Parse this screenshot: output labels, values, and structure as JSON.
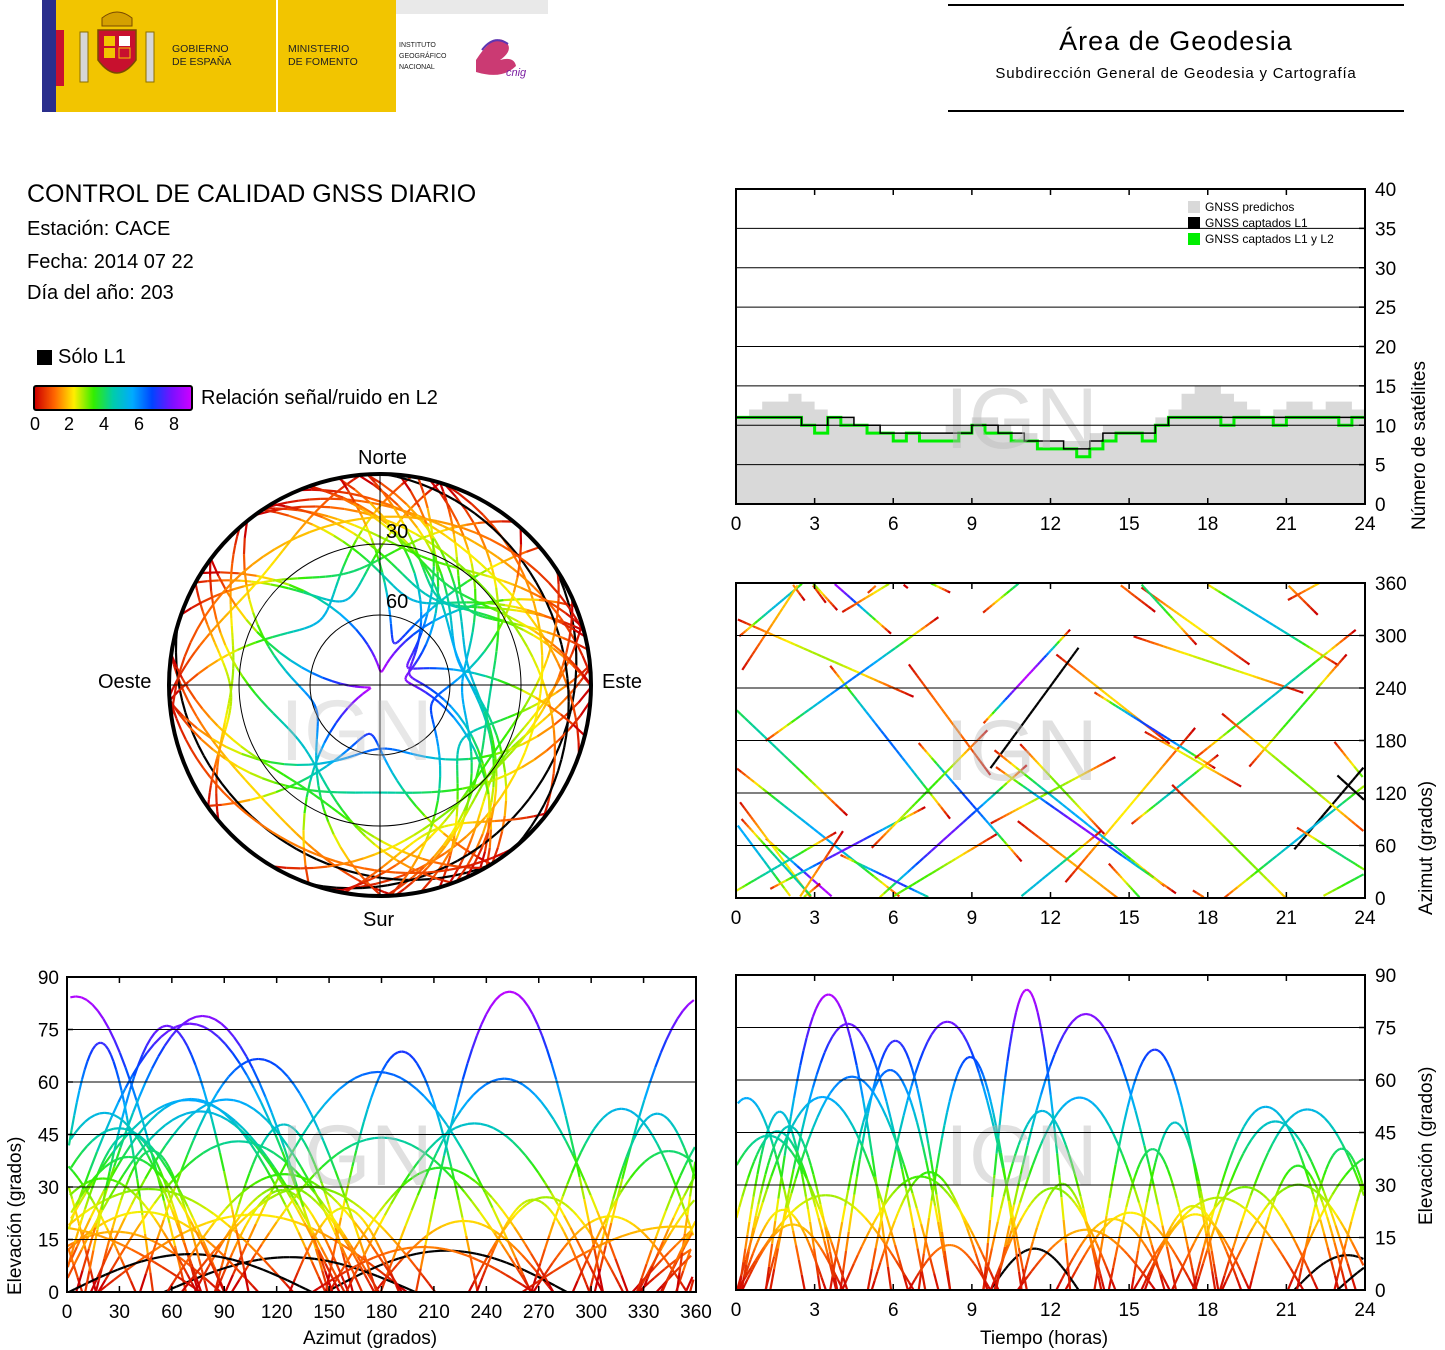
{
  "header": {
    "logo": {
      "gov_line1": "GOBIERNO",
      "gov_line2": "DE ESPAÑA",
      "min_line1": "MINISTERIO",
      "min_line2": "DE FOMENTO",
      "ign_line1": "INSTITUTO",
      "ign_line2": "GEOGRÁFICO",
      "ign_line3": "NACIONAL",
      "cnig_mark": "cnig"
    },
    "area_title": "Área de Geodesia",
    "area_subtitle": "Subdirección General de Geodesia y Cartografía"
  },
  "info": {
    "title": "CONTROL DE CALIDAD GNSS DIARIO",
    "station": "Estación: CACE",
    "date": "Fecha: 2014 07 22",
    "doy": "Día del año: 203"
  },
  "legend": {
    "l1_only": "Sólo L1",
    "snr_label": "Relación señal/ruido en L2",
    "snr_ticks": [
      "0",
      "2",
      "4",
      "6",
      "8"
    ],
    "l1_color": "#000000"
  },
  "watermark": "IGN",
  "colors": {
    "predicted": "#d9d9d9",
    "l1": "#000000",
    "l1l2": "#00ee00",
    "snr_scale": [
      "#cc0000",
      "#ff6600",
      "#ffee00",
      "#33ee00",
      "#00ccaa",
      "#00aaff",
      "#0044ff",
      "#7711ff",
      "#cc00ff"
    ]
  },
  "chart_data": [
    {
      "id": "skyplot",
      "type": "scatter",
      "title": "",
      "direction_labels": {
        "north": "Norte",
        "south": "Sur",
        "east": "Este",
        "west": "Oeste"
      },
      "elevation_ring_labels": [
        "30",
        "60"
      ],
      "elevation_rings": [
        30,
        60
      ],
      "note_tracks": "satellite tracks colored by L2 SNR (0–8 scale); black = L1 only"
    },
    {
      "id": "satellite-count",
      "type": "area",
      "xlabel": "",
      "ylabel": "Número de satélites",
      "xlim": [
        0,
        24
      ],
      "ylim": [
        0,
        40
      ],
      "xticks": [
        "0",
        "3",
        "6",
        "9",
        "12",
        "15",
        "18",
        "21",
        "24"
      ],
      "yticks": [
        "0",
        "5",
        "10",
        "15",
        "20",
        "25",
        "30",
        "35",
        "40"
      ],
      "grid": true,
      "legend_position": "top-right",
      "series": [
        {
          "name": "GNSS predichos",
          "x": [
            0,
            0.5,
            1,
            1.5,
            2,
            2.5,
            3,
            3.5,
            4,
            4.5,
            5,
            5.5,
            6,
            6.5,
            7,
            7.5,
            8,
            8.5,
            9,
            9.5,
            10,
            10.5,
            11,
            11.5,
            12,
            12.5,
            13,
            13.5,
            14,
            14.5,
            15,
            15.5,
            16,
            16.5,
            17,
            17.5,
            18,
            18.5,
            19,
            19.5,
            20,
            20.5,
            21,
            21.5,
            22,
            22.5,
            23,
            23.5,
            24
          ],
          "values": [
            11,
            12,
            13,
            13,
            14,
            13,
            12,
            11,
            11,
            10,
            10,
            9,
            9,
            9,
            9,
            9,
            10,
            10,
            11,
            11,
            10,
            9,
            9,
            8,
            8,
            8,
            8,
            9,
            10,
            10,
            10,
            10,
            11,
            12,
            14,
            15,
            15,
            14,
            13,
            12,
            11,
            12,
            13,
            13,
            12,
            13,
            13,
            12,
            11
          ]
        },
        {
          "name": "GNSS captados L1",
          "x": [
            0,
            0.5,
            1,
            1.5,
            2,
            2.5,
            3,
            3.5,
            4,
            4.5,
            5,
            5.5,
            6,
            6.5,
            7,
            7.5,
            8,
            8.5,
            9,
            9.5,
            10,
            10.5,
            11,
            11.5,
            12,
            12.5,
            13,
            13.5,
            14,
            14.5,
            15,
            15.5,
            16,
            16.5,
            17,
            17.5,
            18,
            18.5,
            19,
            19.5,
            20,
            20.5,
            21,
            21.5,
            22,
            22.5,
            23,
            23.5,
            24
          ],
          "values": [
            11,
            11,
            11,
            11,
            11,
            10,
            10,
            11,
            11,
            10,
            10,
            9,
            9,
            9,
            9,
            9,
            9,
            9,
            10,
            10,
            9,
            9,
            8,
            8,
            8,
            7,
            7,
            8,
            9,
            9,
            9,
            9,
            10,
            11,
            11,
            11,
            11,
            11,
            11,
            11,
            11,
            11,
            11,
            11,
            11,
            11,
            11,
            11,
            11
          ]
        },
        {
          "name": "GNSS captados L1 y L2",
          "x": [
            0,
            0.5,
            1,
            1.5,
            2,
            2.5,
            3,
            3.5,
            4,
            4.5,
            5,
            5.5,
            6,
            6.5,
            7,
            7.5,
            8,
            8.5,
            9,
            9.5,
            10,
            10.5,
            11,
            11.5,
            12,
            12.5,
            13,
            13.5,
            14,
            14.5,
            15,
            15.5,
            16,
            16.5,
            17,
            17.5,
            18,
            18.5,
            19,
            19.5,
            20,
            20.5,
            21,
            21.5,
            22,
            22.5,
            23,
            23.5,
            24
          ],
          "values": [
            11,
            11,
            11,
            11,
            11,
            10,
            9,
            11,
            10,
            10,
            9,
            9,
            8,
            9,
            8,
            8,
            8,
            9,
            10,
            9,
            9,
            8,
            8,
            7,
            7,
            7,
            6,
            7,
            8,
            9,
            9,
            8,
            10,
            11,
            11,
            11,
            11,
            10,
            11,
            11,
            11,
            10,
            11,
            11,
            11,
            11,
            10,
            11,
            11
          ]
        }
      ]
    },
    {
      "id": "azimuth-vs-time",
      "type": "scatter",
      "ylabel": "Azimut (grados)",
      "xlim": [
        0,
        24
      ],
      "ylim": [
        0,
        360
      ],
      "xticks": [
        "0",
        "3",
        "6",
        "9",
        "12",
        "15",
        "18",
        "21",
        "24"
      ],
      "yticks": [
        "0",
        "60",
        "120",
        "180",
        "240",
        "300",
        "360"
      ],
      "grid": true
    },
    {
      "id": "elevation-vs-azimuth",
      "type": "scatter",
      "xlabel": "Azimut (grados)",
      "ylabel": "Elevación (grados)",
      "xlim": [
        0,
        360
      ],
      "ylim": [
        0,
        90
      ],
      "xticks": [
        "0",
        "30",
        "60",
        "90",
        "120",
        "150",
        "180",
        "210",
        "240",
        "270",
        "300",
        "330",
        "360"
      ],
      "yticks": [
        "0",
        "15",
        "30",
        "45",
        "60",
        "75",
        "90"
      ],
      "grid": true
    },
    {
      "id": "elevation-vs-time",
      "type": "scatter",
      "xlabel": "Tiempo (horas)",
      "ylabel": "Elevación (grados)",
      "xlim": [
        0,
        24
      ],
      "ylim": [
        0,
        90
      ],
      "xticks": [
        "0",
        "3",
        "6",
        "9",
        "12",
        "15",
        "18",
        "21",
        "24"
      ],
      "yticks": [
        "0",
        "15",
        "30",
        "45",
        "60",
        "75",
        "90"
      ],
      "grid": true
    }
  ]
}
